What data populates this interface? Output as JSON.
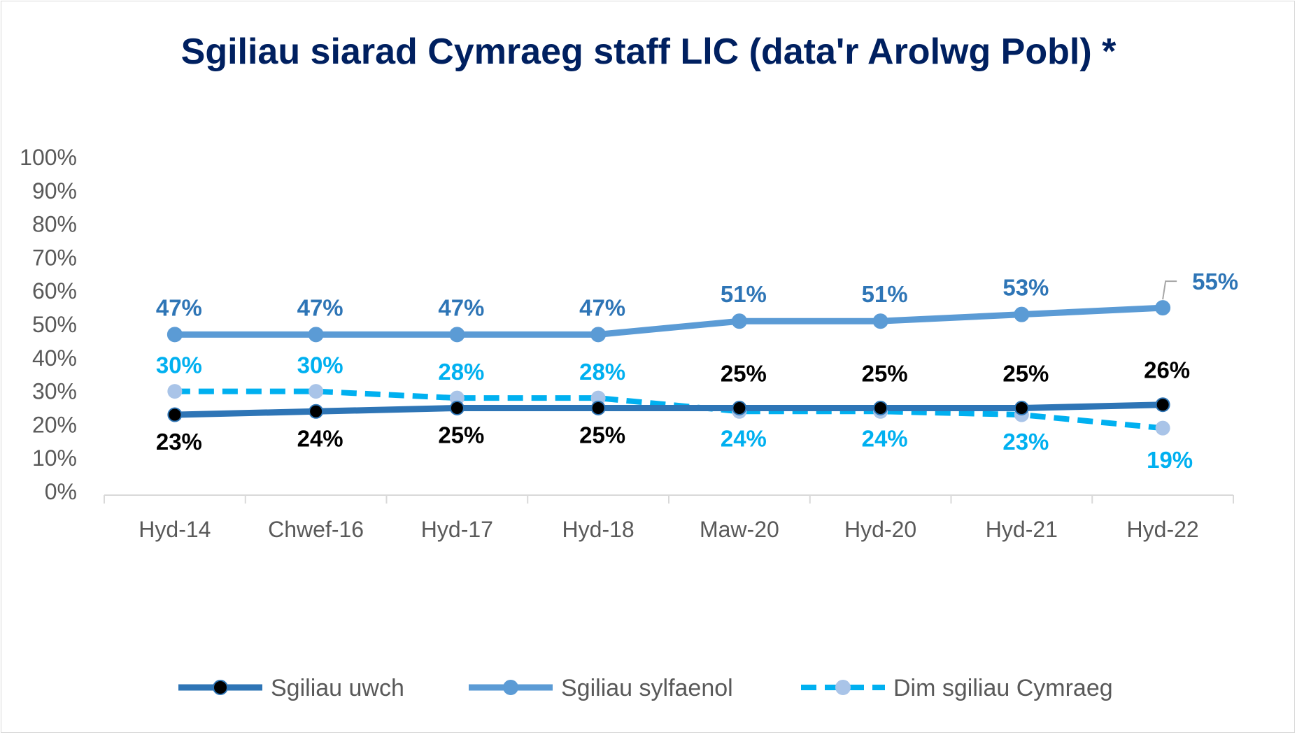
{
  "chart_data": {
    "type": "line",
    "title": "Sgiliau siarad Cymraeg staff LlC (data'r Arolwg Pobl) *",
    "categories": [
      "Hyd-14",
      "Chwef-16",
      "Hyd-17",
      "Hyd-18",
      "Maw-20",
      "Hyd-20",
      "Hyd-21",
      "Hyd-22"
    ],
    "ylim": [
      0,
      100
    ],
    "yticks": [
      "0%",
      "10%",
      "20%",
      "30%",
      "40%",
      "50%",
      "60%",
      "70%",
      "80%",
      "90%",
      "100%"
    ],
    "grid": false,
    "legend": "bottom",
    "series": [
      {
        "name": "Sgiliau uwch",
        "values": [
          23,
          24,
          25,
          25,
          25,
          25,
          25,
          26
        ],
        "labels": [
          "23%",
          "24%",
          "25%",
          "25%",
          "25%",
          "25%",
          "25%",
          "26%"
        ],
        "color": "#2E75B6",
        "marker": "#000000",
        "label_color": "#000000",
        "dashed": false
      },
      {
        "name": "Sgiliau sylfaenol",
        "values": [
          47,
          47,
          47,
          47,
          51,
          51,
          53,
          55
        ],
        "labels": [
          "47%",
          "47%",
          "47%",
          "47%",
          "51%",
          "51%",
          "53%",
          "55%"
        ],
        "color": "#5B9BD5",
        "marker": "#5B9BD5",
        "label_color": "#2E75B6",
        "dashed": false
      },
      {
        "name": "Dim sgiliau Cymraeg",
        "values": [
          30,
          30,
          28,
          28,
          24,
          24,
          23,
          19
        ],
        "labels": [
          "30%",
          "30%",
          "28%",
          "28%",
          "24%",
          "24%",
          "23%",
          "19%"
        ],
        "color": "#00B0F0",
        "marker": "#A9C4E8",
        "label_color": "#00B0F0",
        "dashed": true
      }
    ]
  }
}
